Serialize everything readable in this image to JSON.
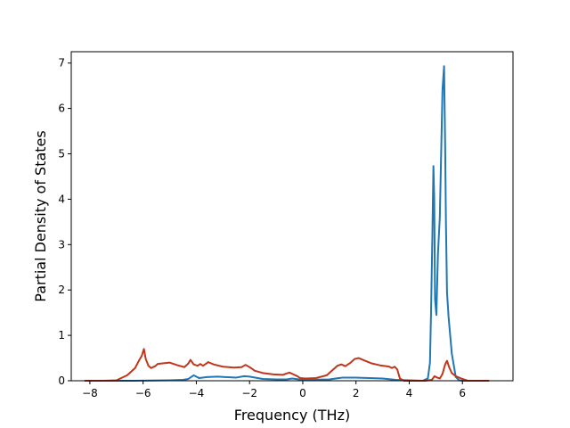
{
  "chart_data": {
    "type": "line",
    "xlabel": "Frequency (THz)",
    "ylabel": "Partial Density of States",
    "xlim": [
      -8.7,
      7.9
    ],
    "ylim": [
      0,
      7.25
    ],
    "xticks": [
      -8,
      -6,
      -4,
      -2,
      0,
      2,
      4,
      6
    ],
    "yticks": [
      0,
      1,
      2,
      3,
      4,
      5,
      6,
      7
    ],
    "grid": false,
    "series": [
      {
        "color": "#1f77b4",
        "x": [
          -8.2,
          -6.4,
          -5.0,
          -4.5,
          -4.3,
          -4.1,
          -3.9,
          -3.6,
          -3.2,
          -2.5,
          -2.2,
          -2.0,
          -1.5,
          -1.0,
          -0.6,
          -0.4,
          0.0,
          1.0,
          1.5,
          2.0,
          2.5,
          3.0,
          3.5,
          4.5,
          4.7,
          4.78,
          4.82,
          4.87,
          4.91,
          4.94,
          4.97,
          5.02,
          5.08,
          5.15,
          5.25,
          5.31,
          5.35,
          5.38,
          5.42,
          5.48,
          5.6,
          5.75,
          5.88,
          6.0,
          7.0
        ],
        "values": [
          0.0,
          0.0,
          0.01,
          0.02,
          0.04,
          0.12,
          0.06,
          0.08,
          0.09,
          0.07,
          0.1,
          0.09,
          0.04,
          0.03,
          0.03,
          0.05,
          0.02,
          0.03,
          0.07,
          0.07,
          0.06,
          0.05,
          0.02,
          0.0,
          0.05,
          0.4,
          1.5,
          3.2,
          4.73,
          4.0,
          1.8,
          1.45,
          2.8,
          3.6,
          6.4,
          6.93,
          5.2,
          3.5,
          1.95,
          1.4,
          0.6,
          0.08,
          0.01,
          0.0,
          0.0
        ]
      },
      {
        "color": "#c1361b",
        "x": [
          -8.2,
          -7.5,
          -7.0,
          -6.6,
          -6.3,
          -6.15,
          -6.05,
          -5.97,
          -5.9,
          -5.8,
          -5.7,
          -5.55,
          -5.45,
          -5.3,
          -5.0,
          -4.7,
          -4.45,
          -4.3,
          -4.22,
          -4.1,
          -3.95,
          -3.85,
          -3.75,
          -3.65,
          -3.55,
          -3.35,
          -3.0,
          -2.6,
          -2.3,
          -2.15,
          -2.0,
          -1.8,
          -1.5,
          -1.1,
          -0.75,
          -0.6,
          -0.5,
          -0.35,
          -0.2,
          -0.1,
          0.1,
          0.5,
          0.9,
          1.15,
          1.3,
          1.45,
          1.6,
          1.8,
          1.95,
          2.1,
          2.3,
          2.6,
          2.9,
          3.15,
          3.25,
          3.35,
          3.45,
          3.55,
          3.65,
          3.8,
          4.2,
          4.6,
          4.85,
          4.95,
          5.05,
          5.15,
          5.25,
          5.35,
          5.42,
          5.5,
          5.6,
          5.75,
          5.95,
          6.2,
          7.0
        ],
        "values": [
          0.0,
          0.0,
          0.01,
          0.12,
          0.28,
          0.45,
          0.55,
          0.7,
          0.48,
          0.33,
          0.28,
          0.32,
          0.37,
          0.38,
          0.4,
          0.34,
          0.3,
          0.38,
          0.46,
          0.36,
          0.33,
          0.37,
          0.33,
          0.37,
          0.41,
          0.36,
          0.31,
          0.29,
          0.3,
          0.35,
          0.3,
          0.22,
          0.17,
          0.14,
          0.13,
          0.16,
          0.18,
          0.14,
          0.1,
          0.06,
          0.05,
          0.06,
          0.12,
          0.25,
          0.33,
          0.36,
          0.32,
          0.4,
          0.48,
          0.5,
          0.45,
          0.38,
          0.34,
          0.32,
          0.31,
          0.28,
          0.31,
          0.25,
          0.05,
          0.0,
          0.0,
          0.0,
          0.02,
          0.1,
          0.07,
          0.05,
          0.15,
          0.36,
          0.44,
          0.3,
          0.17,
          0.1,
          0.05,
          0.0,
          0.0
        ]
      }
    ]
  }
}
